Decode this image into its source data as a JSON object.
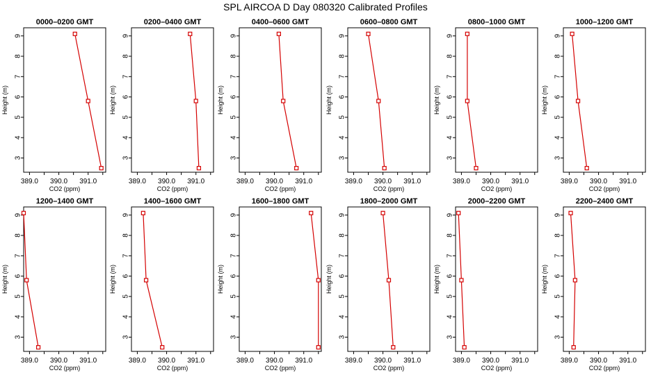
{
  "title": "SPL AIRCOA D  Day 080320  Calibrated Profiles",
  "chart_data": [
    {
      "type": "line",
      "title": "0000–0200 GMT",
      "xlabel": "CO2 (ppm)",
      "ylabel": "Height (m)",
      "xlim": [
        388.8,
        391.6
      ],
      "ylim": [
        2.3,
        9.4
      ],
      "x_ticks": [
        "389.0",
        "390.0",
        "391.0"
      ],
      "y_ticks": [
        "3",
        "4",
        "5",
        "6",
        "7",
        "8",
        "9"
      ],
      "series": [
        {
          "x": [
            390.55,
            391.0,
            391.45
          ],
          "y": [
            9.1,
            5.8,
            2.5
          ]
        }
      ],
      "color": "#d40000"
    },
    {
      "type": "line",
      "title": "0200–0400 GMT",
      "xlabel": "CO2 (ppm)",
      "ylabel": "Height (m)",
      "xlim": [
        388.8,
        391.6
      ],
      "ylim": [
        2.3,
        9.4
      ],
      "x_ticks": [
        "389.0",
        "390.0",
        "391.0"
      ],
      "y_ticks": [
        "3",
        "4",
        "5",
        "6",
        "7",
        "8",
        "9"
      ],
      "series": [
        {
          "x": [
            390.8,
            391.0,
            391.1
          ],
          "y": [
            9.1,
            5.8,
            2.5
          ]
        }
      ],
      "color": "#d40000"
    },
    {
      "type": "line",
      "title": "0400–0600 GMT",
      "xlabel": "CO2 (ppm)",
      "ylabel": "Height (m)",
      "xlim": [
        388.8,
        391.6
      ],
      "ylim": [
        2.3,
        9.4
      ],
      "x_ticks": [
        "389.0",
        "390.0",
        "391.0"
      ],
      "y_ticks": [
        "3",
        "4",
        "5",
        "6",
        "7",
        "8",
        "9"
      ],
      "series": [
        {
          "x": [
            390.15,
            390.3,
            390.75
          ],
          "y": [
            9.1,
            5.8,
            2.5
          ]
        }
      ],
      "color": "#d40000"
    },
    {
      "type": "line",
      "title": "0600–0800 GMT",
      "xlabel": "CO2 (ppm)",
      "ylabel": "Height (m)",
      "xlim": [
        388.8,
        391.6
      ],
      "ylim": [
        2.3,
        9.4
      ],
      "x_ticks": [
        "389.0",
        "390.0",
        "391.0"
      ],
      "y_ticks": [
        "3",
        "4",
        "5",
        "6",
        "7",
        "8",
        "9"
      ],
      "series": [
        {
          "x": [
            389.5,
            389.85,
            390.05
          ],
          "y": [
            9.1,
            5.8,
            2.5
          ]
        }
      ],
      "color": "#d40000"
    },
    {
      "type": "line",
      "title": "0800–1000 GMT",
      "xlabel": "CO2 (ppm)",
      "ylabel": "Height (m)",
      "xlim": [
        388.8,
        391.6
      ],
      "ylim": [
        2.3,
        9.4
      ],
      "x_ticks": [
        "389.0",
        "390.0",
        "391.0"
      ],
      "y_ticks": [
        "3",
        "4",
        "5",
        "6",
        "7",
        "8",
        "9"
      ],
      "series": [
        {
          "x": [
            389.2,
            389.2,
            389.5
          ],
          "y": [
            9.1,
            5.8,
            2.5
          ]
        }
      ],
      "color": "#d40000"
    },
    {
      "type": "line",
      "title": "1000–1200 GMT",
      "xlabel": "CO2 (ppm)",
      "ylabel": "Height (m)",
      "xlim": [
        388.8,
        391.6
      ],
      "ylim": [
        2.3,
        9.4
      ],
      "x_ticks": [
        "389.0",
        "390.0",
        "391.0"
      ],
      "y_ticks": [
        "3",
        "4",
        "5",
        "6",
        "7",
        "8",
        "9"
      ],
      "series": [
        {
          "x": [
            389.1,
            389.3,
            389.6
          ],
          "y": [
            9.1,
            5.8,
            2.5
          ]
        }
      ],
      "color": "#d40000"
    },
    {
      "type": "line",
      "title": "1200–1400 GMT",
      "xlabel": "CO2 (ppm)",
      "ylabel": "Height (m)",
      "xlim": [
        388.8,
        391.6
      ],
      "ylim": [
        2.3,
        9.4
      ],
      "x_ticks": [
        "389.0",
        "390.0",
        "391.0"
      ],
      "y_ticks": [
        "3",
        "4",
        "5",
        "6",
        "7",
        "8",
        "9"
      ],
      "series": [
        {
          "x": [
            388.8,
            388.9,
            389.3
          ],
          "y": [
            9.1,
            5.8,
            2.5
          ]
        }
      ],
      "color": "#d40000"
    },
    {
      "type": "line",
      "title": "1400–1600 GMT",
      "xlabel": "CO2 (ppm)",
      "ylabel": "Height (m)",
      "xlim": [
        388.8,
        391.6
      ],
      "ylim": [
        2.3,
        9.4
      ],
      "x_ticks": [
        "389.0",
        "390.0",
        "391.0"
      ],
      "y_ticks": [
        "3",
        "4",
        "5",
        "6",
        "7",
        "8",
        "9"
      ],
      "series": [
        {
          "x": [
            389.2,
            389.3,
            389.85
          ],
          "y": [
            9.1,
            5.8,
            2.5
          ]
        }
      ],
      "color": "#d40000"
    },
    {
      "type": "line",
      "title": "1600–1800 GMT",
      "xlabel": "CO2 (ppm)",
      "ylabel": "Height (m)",
      "xlim": [
        388.8,
        391.6
      ],
      "ylim": [
        2.3,
        9.4
      ],
      "x_ticks": [
        "389.0",
        "390.0",
        "391.0"
      ],
      "y_ticks": [
        "3",
        "4",
        "5",
        "6",
        "7",
        "8",
        "9"
      ],
      "series": [
        {
          "x": [
            391.25,
            391.5,
            391.5
          ],
          "y": [
            9.1,
            5.8,
            2.5
          ]
        }
      ],
      "color": "#d40000"
    },
    {
      "type": "line",
      "title": "1800–2000 GMT",
      "xlabel": "CO2 (ppm)",
      "ylabel": "Height (m)",
      "xlim": [
        388.8,
        391.6
      ],
      "ylim": [
        2.3,
        9.4
      ],
      "x_ticks": [
        "389.0",
        "390.0",
        "391.0"
      ],
      "y_ticks": [
        "3",
        "4",
        "5",
        "6",
        "7",
        "8",
        "9"
      ],
      "series": [
        {
          "x": [
            390.0,
            390.2,
            390.35
          ],
          "y": [
            9.1,
            5.8,
            2.5
          ]
        }
      ],
      "color": "#d40000"
    },
    {
      "type": "line",
      "title": "2000–2200 GMT",
      "xlabel": "CO2 (ppm)",
      "ylabel": "Height (m)",
      "xlim": [
        388.8,
        391.6
      ],
      "ylim": [
        2.3,
        9.4
      ],
      "x_ticks": [
        "389.0",
        "390.0",
        "391.0"
      ],
      "y_ticks": [
        "3",
        "4",
        "5",
        "6",
        "7",
        "8",
        "9"
      ],
      "series": [
        {
          "x": [
            388.9,
            389.0,
            389.1
          ],
          "y": [
            9.1,
            5.8,
            2.5
          ]
        }
      ],
      "color": "#d40000"
    },
    {
      "type": "line",
      "title": "2200–2400 GMT",
      "xlabel": "CO2 (ppm)",
      "ylabel": "Height (m)",
      "xlim": [
        388.8,
        391.6
      ],
      "ylim": [
        2.3,
        9.4
      ],
      "x_ticks": [
        "389.0",
        "390.0",
        "391.0"
      ],
      "y_ticks": [
        "3",
        "4",
        "5",
        "6",
        "7",
        "8",
        "9"
      ],
      "series": [
        {
          "x": [
            389.05,
            389.2,
            389.15
          ],
          "y": [
            9.1,
            5.8,
            2.5
          ]
        }
      ],
      "color": "#d40000"
    }
  ]
}
